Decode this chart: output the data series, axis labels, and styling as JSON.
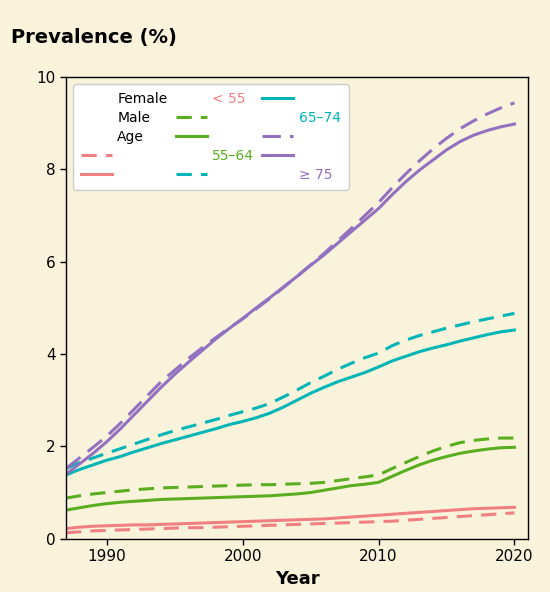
{
  "title": "Prevalence (%)",
  "xlabel": "Year",
  "background_color": "#FAF3DC",
  "ylim": [
    0,
    10
  ],
  "xlim": [
    1987,
    2021
  ],
  "yticks": [
    0,
    2,
    4,
    6,
    8,
    10
  ],
  "xticks": [
    1990,
    2000,
    2010,
    2020
  ],
  "colors": {
    "red": "#F08080",
    "green": "#5BAD20",
    "cyan": "#00B5B5",
    "purple": "#9370C0"
  },
  "years": [
    1987,
    1988,
    1989,
    1990,
    1991,
    1992,
    1993,
    1994,
    1995,
    1996,
    1997,
    1998,
    1999,
    2000,
    2001,
    2002,
    2003,
    2004,
    2005,
    2006,
    2007,
    2008,
    2009,
    2010,
    2011,
    2012,
    2013,
    2014,
    2015,
    2016,
    2017,
    2018,
    2019,
    2020
  ],
  "male_lt55": [
    0.22,
    0.25,
    0.27,
    0.28,
    0.29,
    0.3,
    0.3,
    0.31,
    0.32,
    0.33,
    0.34,
    0.35,
    0.36,
    0.37,
    0.38,
    0.39,
    0.4,
    0.41,
    0.42,
    0.43,
    0.45,
    0.47,
    0.49,
    0.51,
    0.53,
    0.55,
    0.57,
    0.59,
    0.61,
    0.63,
    0.65,
    0.66,
    0.67,
    0.68
  ],
  "female_lt55": [
    0.13,
    0.15,
    0.17,
    0.18,
    0.19,
    0.2,
    0.21,
    0.22,
    0.23,
    0.24,
    0.24,
    0.25,
    0.26,
    0.27,
    0.28,
    0.29,
    0.3,
    0.31,
    0.32,
    0.33,
    0.34,
    0.35,
    0.36,
    0.37,
    0.38,
    0.4,
    0.42,
    0.44,
    0.46,
    0.48,
    0.5,
    0.52,
    0.54,
    0.56
  ],
  "male_55_64": [
    0.62,
    0.67,
    0.72,
    0.76,
    0.79,
    0.81,
    0.83,
    0.85,
    0.86,
    0.87,
    0.88,
    0.89,
    0.9,
    0.91,
    0.92,
    0.93,
    0.95,
    0.97,
    1.0,
    1.05,
    1.1,
    1.15,
    1.18,
    1.22,
    1.35,
    1.48,
    1.6,
    1.7,
    1.78,
    1.85,
    1.9,
    1.94,
    1.97,
    1.98
  ],
  "female_55_64": [
    0.88,
    0.93,
    0.97,
    1.0,
    1.03,
    1.06,
    1.08,
    1.1,
    1.11,
    1.12,
    1.13,
    1.14,
    1.15,
    1.16,
    1.17,
    1.17,
    1.18,
    1.19,
    1.2,
    1.22,
    1.26,
    1.3,
    1.34,
    1.38,
    1.52,
    1.65,
    1.78,
    1.9,
    2.0,
    2.08,
    2.13,
    2.16,
    2.18,
    2.18
  ],
  "male_65_74": [
    1.38,
    1.5,
    1.6,
    1.7,
    1.78,
    1.88,
    1.97,
    2.06,
    2.14,
    2.22,
    2.3,
    2.38,
    2.47,
    2.54,
    2.62,
    2.72,
    2.85,
    3.0,
    3.15,
    3.28,
    3.4,
    3.5,
    3.6,
    3.72,
    3.85,
    3.95,
    4.05,
    4.13,
    4.2,
    4.28,
    4.35,
    4.42,
    4.48,
    4.52
  ],
  "female_65_74": [
    1.52,
    1.65,
    1.75,
    1.85,
    1.95,
    2.05,
    2.15,
    2.25,
    2.34,
    2.42,
    2.5,
    2.58,
    2.67,
    2.75,
    2.83,
    2.93,
    3.07,
    3.22,
    3.38,
    3.52,
    3.67,
    3.8,
    3.92,
    4.02,
    4.18,
    4.3,
    4.4,
    4.48,
    4.56,
    4.63,
    4.7,
    4.76,
    4.82,
    4.88
  ],
  "male_ge75": [
    1.4,
    1.62,
    1.85,
    2.1,
    2.38,
    2.68,
    2.98,
    3.28,
    3.56,
    3.82,
    4.07,
    4.32,
    4.55,
    4.77,
    5.0,
    5.22,
    5.45,
    5.68,
    5.92,
    6.15,
    6.4,
    6.65,
    6.9,
    7.15,
    7.45,
    7.73,
    7.98,
    8.2,
    8.42,
    8.6,
    8.74,
    8.84,
    8.92,
    8.98
  ],
  "female_ge75": [
    1.52,
    1.75,
    1.98,
    2.22,
    2.5,
    2.8,
    3.1,
    3.4,
    3.65,
    3.9,
    4.13,
    4.35,
    4.56,
    4.76,
    4.98,
    5.2,
    5.44,
    5.68,
    5.93,
    6.18,
    6.45,
    6.72,
    7.0,
    7.28,
    7.6,
    7.9,
    8.18,
    8.44,
    8.67,
    8.88,
    9.05,
    9.2,
    9.33,
    9.44
  ]
}
